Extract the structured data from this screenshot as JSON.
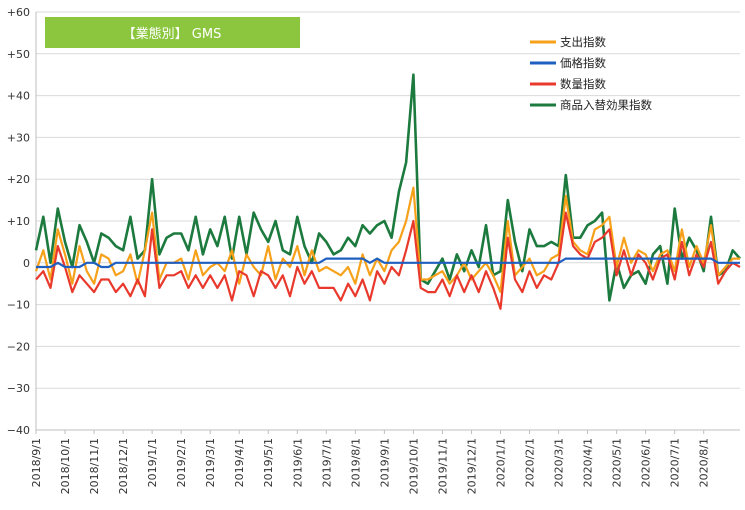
{
  "chart_data": {
    "type": "line",
    "title": "【業態別】 GMS",
    "title_bg_color": "#8cc63f",
    "ylim": [
      -40,
      60
    ],
    "y_ticks": [
      -40,
      -30,
      -20,
      -10,
      0,
      10,
      20,
      30,
      40,
      50,
      60
    ],
    "y_tick_labels": [
      "−40",
      "−30",
      "−20",
      "−10",
      "0",
      "+10",
      "+20",
      "+30",
      "+40",
      "+50",
      "+60"
    ],
    "x_tick_labels": [
      "2018/9/1",
      "2018/10/1",
      "2018/11/1",
      "2018/12/1",
      "2019/1/1",
      "2019/2/1",
      "2019/3/1",
      "2019/4/1",
      "2019/5/1",
      "2019/6/1",
      "2019/7/1",
      "2019/8/1",
      "2019/9/1",
      "2019/10/1",
      "2019/11/1",
      "2019/12/1",
      "2020/1/1",
      "2020/2/1",
      "2020/3/1",
      "2020/4/1",
      "2020/5/1",
      "2020/6/1",
      "2020/7/1",
      "2020/8/1"
    ],
    "x_tick_index": [
      0,
      4,
      8,
      12,
      16,
      20,
      24,
      28,
      32,
      36,
      40,
      44,
      48,
      52,
      56,
      60,
      64,
      68,
      72,
      76,
      80,
      84,
      88,
      92
    ],
    "grid": "horizontal",
    "legend_position": "top-right",
    "series": [
      {
        "name": "支出指数",
        "color": "#f7a11a",
        "values": [
          -2,
          3,
          -4,
          8,
          2,
          -5,
          4,
          -2,
          -5,
          2,
          1,
          -3,
          -2,
          2,
          -5,
          3,
          12,
          -4,
          0,
          0,
          1,
          -4,
          3,
          -3,
          -1,
          0,
          -2,
          3,
          -5,
          2,
          -1,
          -3,
          4,
          -4,
          1,
          -1,
          4,
          -3,
          3,
          -2,
          -1,
          -2,
          -3,
          -1,
          -5,
          2,
          -3,
          1,
          -2,
          3,
          5,
          10,
          18,
          -4,
          -4,
          -3,
          -2,
          -5,
          -3,
          0,
          -4,
          -2,
          0,
          -3,
          -7,
          10,
          -3,
          -1,
          1,
          -3,
          -2,
          1,
          2,
          16,
          5,
          3,
          2,
          8,
          9,
          11,
          -1,
          6,
          0,
          3,
          2,
          -2,
          2,
          3,
          -2,
          8,
          -1,
          4,
          0,
          9,
          -3,
          -1,
          1,
          1
        ]
      },
      {
        "name": "価格指数",
        "color": "#1f5fc0",
        "values": [
          -1,
          -1,
          -1,
          0,
          -1,
          -1,
          -1,
          0,
          0,
          -1,
          -1,
          0,
          0,
          0,
          0,
          0,
          0,
          0,
          0,
          0,
          0,
          0,
          0,
          0,
          0,
          0,
          0,
          0,
          0,
          0,
          0,
          0,
          0,
          0,
          0,
          0,
          0,
          0,
          0,
          0,
          1,
          1,
          1,
          1,
          1,
          1,
          0,
          1,
          0,
          0,
          0,
          0,
          0,
          0,
          0,
          0,
          0,
          0,
          0,
          0,
          0,
          0,
          0,
          0,
          0,
          0,
          0,
          0,
          0,
          0,
          0,
          0,
          0,
          1,
          1,
          1,
          1,
          1,
          1,
          1,
          1,
          1,
          1,
          1,
          1,
          1,
          1,
          1,
          1,
          1,
          1,
          1,
          1,
          1,
          0,
          0,
          0,
          0
        ]
      },
      {
        "name": "数量指数",
        "color": "#e8392c",
        "values": [
          -4,
          -2,
          -6,
          4,
          -1,
          -7,
          -3,
          -5,
          -7,
          -4,
          -4,
          -7,
          -5,
          -8,
          -4,
          -8,
          8,
          -6,
          -3,
          -3,
          -2,
          -6,
          -3,
          -6,
          -3,
          -6,
          -3,
          -9,
          -2,
          -3,
          -8,
          -2,
          -3,
          -6,
          -3,
          -8,
          -1,
          -5,
          -2,
          -6,
          -6,
          -6,
          -9,
          -5,
          -8,
          -4,
          -9,
          -2,
          -5,
          -1,
          -3,
          3,
          10,
          -6,
          -7,
          -7,
          -4,
          -8,
          -3,
          -7,
          -3,
          -7,
          -2,
          -6,
          -11,
          6,
          -4,
          -7,
          -2,
          -6,
          -3,
          -4,
          0,
          12,
          4,
          2,
          1,
          5,
          6,
          8,
          -3,
          3,
          -3,
          2,
          0,
          -4,
          1,
          2,
          -4,
          5,
          -3,
          2,
          -1,
          5,
          -5,
          -2,
          0,
          -1
        ]
      },
      {
        "name": "商品入替効果指数",
        "color": "#1c7a3e",
        "values": [
          3,
          11,
          0,
          13,
          5,
          -1,
          9,
          5,
          0,
          7,
          6,
          4,
          3,
          11,
          1,
          3,
          20,
          2,
          6,
          7,
          7,
          3,
          11,
          2,
          8,
          4,
          11,
          1,
          11,
          2,
          12,
          8,
          5,
          10,
          3,
          2,
          11,
          4,
          0,
          7,
          5,
          2,
          3,
          6,
          4,
          9,
          7,
          9,
          10,
          6,
          17,
          24,
          45,
          -4,
          -5,
          -2,
          1,
          -4,
          2,
          -2,
          3,
          -1,
          9,
          -3,
          -2,
          15,
          5,
          -2,
          8,
          4,
          4,
          5,
          4,
          21,
          6,
          6,
          9,
          10,
          12,
          -9,
          0,
          -6,
          -3,
          -2,
          -5,
          2,
          4,
          -5,
          13,
          1,
          6,
          3,
          -2,
          11,
          -3,
          -2,
          3,
          1
        ]
      }
    ]
  }
}
